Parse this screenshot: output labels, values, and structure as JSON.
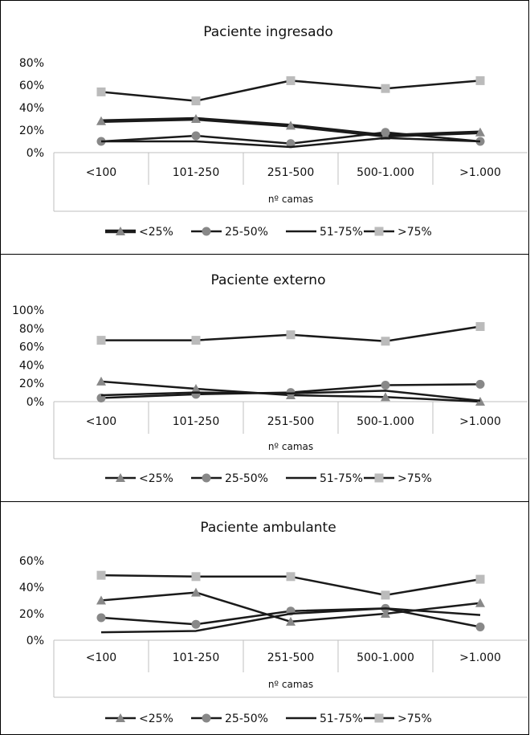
{
  "chart_data": [
    {
      "type": "line",
      "title": "Paciente ingresado",
      "xlabel": "nº camas",
      "categories": [
        "<100",
        "101-250",
        "251-500",
        "500-1.000",
        ">1.000"
      ],
      "yticks": [
        "0%",
        "20%",
        "40%",
        "60%",
        "80%"
      ],
      "ylim": [
        0,
        80
      ],
      "legend_position": "bottom",
      "grid": false,
      "series": [
        {
          "name": "<25%",
          "marker": "triangle",
          "color": "#888888",
          "line_color": "#1a1a1a",
          "thick": true,
          "values": [
            28,
            30,
            24,
            15,
            18
          ]
        },
        {
          "name": "25-50%",
          "marker": "circle",
          "color": "#888888",
          "line_color": "#1a1a1a",
          "thick": false,
          "values": [
            10,
            15,
            8,
            18,
            10
          ]
        },
        {
          "name": "51-75%",
          "marker": "none",
          "color": "#1a1a1a",
          "line_color": "#1a1a1a",
          "thick": false,
          "values": [
            10,
            10,
            5,
            13,
            10
          ]
        },
        {
          "name": ">75%",
          "marker": "square",
          "color": "#bbbbbb",
          "line_color": "#1a1a1a",
          "thick": false,
          "values": [
            54,
            46,
            64,
            57,
            64
          ]
        }
      ]
    },
    {
      "type": "line",
      "title": "Paciente externo",
      "xlabel": "nº camas",
      "categories": [
        "<100",
        "101-250",
        "251-500",
        "500-1.000",
        ">1.000"
      ],
      "yticks": [
        "0%",
        "20%",
        "40%",
        "60%",
        "80%",
        "100%"
      ],
      "ylim": [
        0,
        100
      ],
      "legend_position": "bottom",
      "grid": false,
      "series": [
        {
          "name": "<25%",
          "marker": "triangle",
          "color": "#888888",
          "line_color": "#1a1a1a",
          "thick": false,
          "values": [
            22,
            14,
            7,
            5,
            0
          ]
        },
        {
          "name": "25-50%",
          "marker": "circle",
          "color": "#888888",
          "line_color": "#1a1a1a",
          "thick": false,
          "values": [
            4,
            8,
            10,
            18,
            19
          ]
        },
        {
          "name": "51-75%",
          "marker": "none",
          "color": "#1a1a1a",
          "line_color": "#1a1a1a",
          "thick": false,
          "values": [
            7,
            10,
            9,
            12,
            1
          ]
        },
        {
          "name": ">75%",
          "marker": "square",
          "color": "#bbbbbb",
          "line_color": "#1a1a1a",
          "thick": false,
          "values": [
            67,
            67,
            73,
            66,
            82
          ]
        }
      ]
    },
    {
      "type": "line",
      "title": "Paciente ambulante",
      "xlabel": "nº camas",
      "categories": [
        "<100",
        "101-250",
        "251-500",
        "500-1.000",
        ">1.000"
      ],
      "yticks": [
        "0%",
        "20%",
        "40%",
        "60%"
      ],
      "ylim": [
        0,
        60
      ],
      "legend_position": "bottom",
      "grid": false,
      "series": [
        {
          "name": "<25%",
          "marker": "triangle",
          "color": "#888888",
          "line_color": "#1a1a1a",
          "thick": false,
          "values": [
            30,
            36,
            14,
            20,
            28
          ]
        },
        {
          "name": "25-50%",
          "marker": "circle",
          "color": "#888888",
          "line_color": "#1a1a1a",
          "thick": false,
          "values": [
            17,
            12,
            22,
            24,
            10
          ]
        },
        {
          "name": "51-75%",
          "marker": "none",
          "color": "#1a1a1a",
          "line_color": "#1a1a1a",
          "thick": false,
          "values": [
            6,
            7,
            20,
            24,
            19
          ]
        },
        {
          "name": ">75%",
          "marker": "square",
          "color": "#bbbbbb",
          "line_color": "#1a1a1a",
          "thick": false,
          "values": [
            49,
            48,
            48,
            34,
            46
          ]
        }
      ]
    }
  ]
}
